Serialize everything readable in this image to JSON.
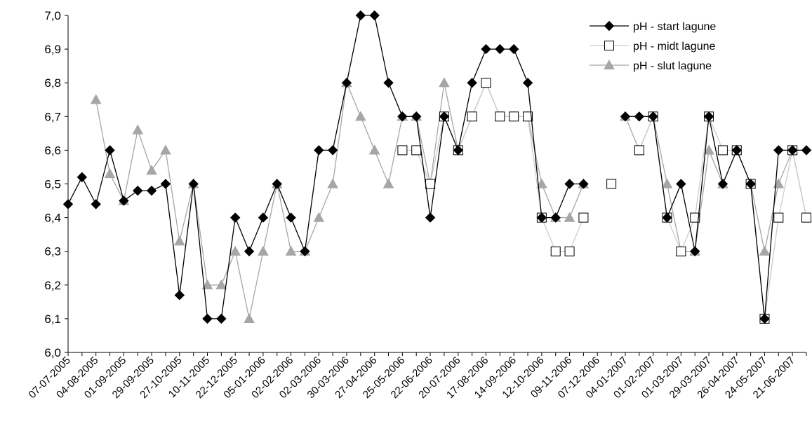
{
  "chart_data": {
    "type": "line",
    "title": "",
    "xlabel": "",
    "ylabel": "",
    "ylim": [
      6.0,
      7.0
    ],
    "yticks": [
      "6,0",
      "6,1",
      "6,2",
      "6,3",
      "6,4",
      "6,5",
      "6,6",
      "6,7",
      "6,8",
      "6,9",
      "7,0"
    ],
    "x_tick_labels": [
      "07-07-2005",
      "04-08-2005",
      "01-09-2005",
      "29-09-2005",
      "27-10-2005",
      "10-11-2005",
      "22-12-2005",
      "05-01-2006",
      "02-02-2006",
      "02-03-2006",
      "30-03-2006",
      "27-04-2006",
      "25-05-2006",
      "22-06-2006",
      "20-07-2006",
      "17-08-2006",
      "14-09-2006",
      "12-10-2006",
      "09-11-2006",
      "07-12-2006",
      "04-01-2007",
      "01-02-2007",
      "01-03-2007",
      "29-03-2007",
      "26-04-2007",
      "24-05-2007",
      "21-06-2007"
    ],
    "x_tick_indices": [
      0,
      2,
      4,
      6,
      8,
      10,
      12,
      14,
      16,
      18,
      20,
      22,
      24,
      26,
      28,
      30,
      32,
      34,
      36,
      38,
      40,
      42,
      44,
      46,
      48,
      50,
      52
    ],
    "num_points": 54,
    "grid": false,
    "legend_position": "top-right",
    "series": [
      {
        "name": "pH - start lagune",
        "marker": "diamond",
        "color": "#000000",
        "values": [
          6.44,
          6.52,
          6.44,
          6.6,
          6.45,
          6.48,
          6.48,
          6.5,
          6.17,
          6.5,
          6.1,
          6.1,
          6.4,
          6.3,
          6.4,
          6.5,
          6.4,
          6.3,
          6.6,
          6.6,
          6.8,
          7.0,
          7.0,
          6.8,
          6.7,
          6.7,
          6.4,
          6.7,
          6.6,
          6.8,
          6.9,
          6.9,
          6.9,
          6.8,
          6.4,
          6.4,
          6.5,
          6.5,
          null,
          null,
          6.7,
          6.7,
          6.7,
          6.4,
          6.5,
          6.3,
          6.7,
          6.5,
          6.6,
          6.5,
          6.1,
          6.6,
          6.6,
          6.6
        ]
      },
      {
        "name": "pH - midt lagune",
        "marker": "square",
        "color": "#cccccc",
        "values": [
          null,
          null,
          null,
          null,
          null,
          null,
          null,
          null,
          null,
          null,
          null,
          null,
          null,
          null,
          null,
          null,
          null,
          null,
          null,
          null,
          null,
          null,
          null,
          null,
          6.6,
          6.6,
          6.5,
          6.7,
          6.6,
          6.7,
          6.8,
          6.7,
          6.7,
          6.7,
          6.4,
          6.3,
          6.3,
          6.4,
          null,
          6.5,
          null,
          6.6,
          6.7,
          6.4,
          6.3,
          6.4,
          6.7,
          6.6,
          6.6,
          6.5,
          6.1,
          6.4,
          6.6,
          6.4
        ]
      },
      {
        "name": "pH - slut lagune",
        "marker": "triangle",
        "color": "#a6a6a6",
        "values": [
          null,
          null,
          6.75,
          6.53,
          6.45,
          6.66,
          6.54,
          6.6,
          6.33,
          6.5,
          6.2,
          6.2,
          6.3,
          6.1,
          6.3,
          6.5,
          6.3,
          6.3,
          6.4,
          6.5,
          6.8,
          6.7,
          6.6,
          6.5,
          6.7,
          6.7,
          6.5,
          6.8,
          6.6,
          6.7,
          6.8,
          6.7,
          6.7,
          6.7,
          6.5,
          6.4,
          6.4,
          6.5,
          null,
          null,
          6.7,
          6.6,
          6.7,
          6.5,
          6.3,
          6.3,
          6.6,
          6.5,
          6.6,
          6.5,
          6.3,
          6.5,
          6.6,
          6.4
        ]
      }
    ]
  }
}
